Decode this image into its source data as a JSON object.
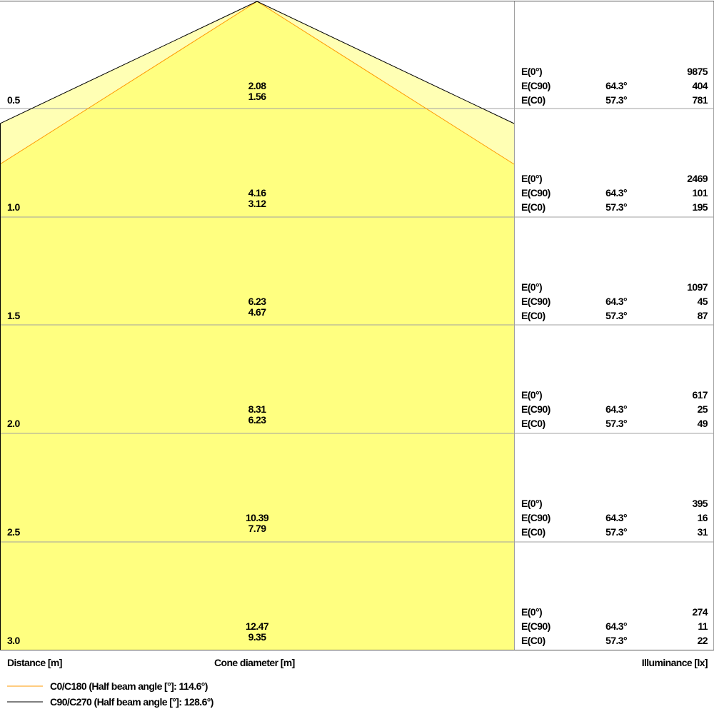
{
  "colors": {
    "outer_fill": "#ffffb4",
    "inner_fill": "#ffff80",
    "c0_line": "#ff9900",
    "c90_line": "#000000",
    "grid": "#a0a0a0"
  },
  "rows": [
    {
      "distance": "0.5",
      "d_c90": "2.08",
      "d_c0": "1.56",
      "e0": "9875",
      "ec90_angle": "64.3°",
      "ec90": "404",
      "ec0_angle": "57.3°",
      "ec0": "781"
    },
    {
      "distance": "1.0",
      "d_c90": "4.16",
      "d_c0": "3.12",
      "e0": "2469",
      "ec90_angle": "64.3°",
      "ec90": "101",
      "ec0_angle": "57.3°",
      "ec0": "195"
    },
    {
      "distance": "1.5",
      "d_c90": "6.23",
      "d_c0": "4.67",
      "e0": "1097",
      "ec90_angle": "64.3°",
      "ec90": "45",
      "ec0_angle": "57.3°",
      "ec0": "87"
    },
    {
      "distance": "2.0",
      "d_c90": "8.31",
      "d_c0": "6.23",
      "e0": "617",
      "ec90_angle": "64.3°",
      "ec90": "25",
      "ec0_angle": "57.3°",
      "ec0": "49"
    },
    {
      "distance": "2.5",
      "d_c90": "10.39",
      "d_c0": "7.79",
      "e0": "395",
      "ec90_angle": "64.3°",
      "ec90": "16",
      "ec0_angle": "57.3°",
      "ec0": "31"
    },
    {
      "distance": "3.0",
      "d_c90": "12.47",
      "d_c0": "9.35",
      "e0": "274",
      "ec90_angle": "64.3°",
      "ec90": "11",
      "ec0_angle": "57.3°",
      "ec0": "22"
    }
  ],
  "labels": {
    "e0": "E(0°)",
    "ec90": "E(C90)",
    "ec0": "E(C0)"
  },
  "axis": {
    "distance": "Distance [m]",
    "cone": "Cone diameter [m]",
    "illuminance": "Illuminance [lx]"
  },
  "legend": [
    {
      "label": "C0/C180 (Half beam angle [°]: 114.6°)",
      "color": "#ff9900"
    },
    {
      "label": "C90/C270 (Half beam angle [°]: 128.6°)",
      "color": "#000000"
    }
  ]
}
